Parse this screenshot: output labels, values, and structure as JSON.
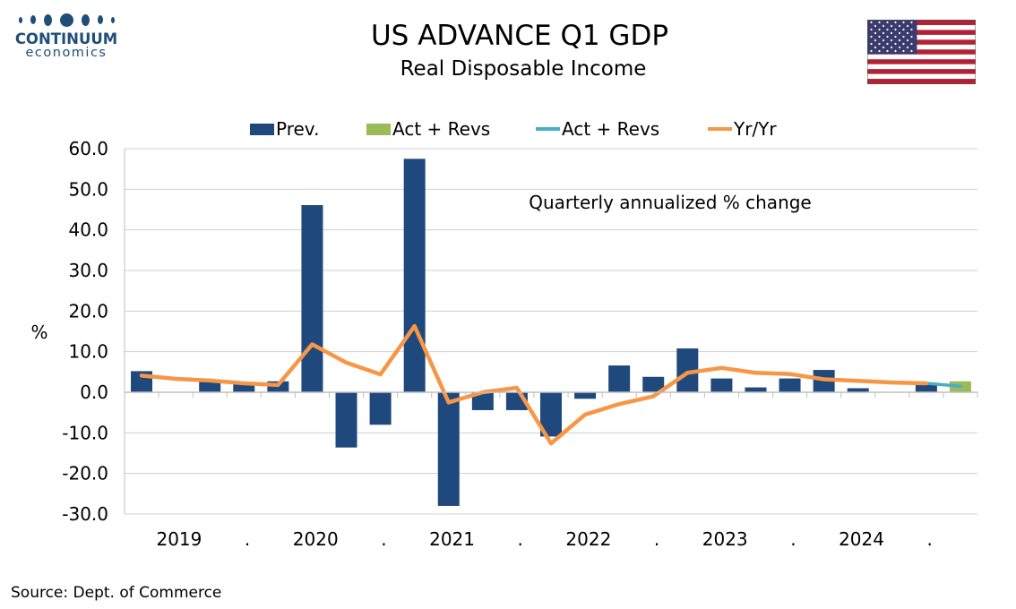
{
  "logo": {
    "name": "CONTINUUM",
    "sub": "economics"
  },
  "title": "US ADVANCE Q1 GDP",
  "subtitle": "Real Disposable Income",
  "source": "Source: Dept. of Commerce",
  "flag_icon": "us-flag-icon",
  "chart_data": {
    "type": "bar",
    "ylabel": "%",
    "annotation": "Quarterly annualized % change",
    "ylim": [
      -30,
      60
    ],
    "yticks": [
      "60.0",
      "50.0",
      "40.0",
      "30.0",
      "20.0",
      "10.0",
      "0.0",
      "-10.0",
      "-20.0",
      "-30.0"
    ],
    "x_labels": [
      "2019",
      ".",
      "2020",
      ".",
      "2021",
      ".",
      "2022",
      ".",
      "2023",
      ".",
      "2024",
      "."
    ],
    "legend_position": "top",
    "legend": [
      {
        "label": "Prev.",
        "kind": "bar",
        "color": "#1f497d"
      },
      {
        "label": "Act + Revs",
        "kind": "bar",
        "color": "#9bbb59"
      },
      {
        "label": "Act + Revs",
        "kind": "line",
        "color": "#4bacc6"
      },
      {
        "label": "Yr/Yr",
        "kind": "line",
        "color": "#f79646"
      }
    ],
    "series": [
      {
        "name": "Prev.",
        "kind": "bar",
        "color": "#1f497d",
        "values": [
          5.2,
          null,
          3.0,
          2.0,
          2.7,
          46.1,
          -13.6,
          -8.0,
          57.5,
          -28.0,
          -4.4,
          -4.4,
          -10.9,
          -1.6,
          6.6,
          3.8,
          10.8,
          3.4,
          1.2,
          3.4,
          5.5,
          1.0,
          null,
          1.9,
          null
        ]
      },
      {
        "name": "Act + Revs",
        "kind": "bar",
        "color": "#9bbb59",
        "values": [
          null,
          null,
          null,
          null,
          null,
          null,
          null,
          null,
          null,
          null,
          null,
          null,
          null,
          null,
          null,
          null,
          null,
          null,
          null,
          null,
          null,
          null,
          null,
          null,
          2.7
        ]
      },
      {
        "name": "Act + Revs",
        "kind": "line",
        "color": "#4bacc6",
        "values": [
          null,
          null,
          null,
          null,
          null,
          null,
          null,
          null,
          null,
          null,
          null,
          null,
          null,
          null,
          null,
          null,
          null,
          null,
          null,
          null,
          null,
          null,
          null,
          2.2,
          1.5
        ]
      },
      {
        "name": "Yr/Yr",
        "kind": "line",
        "color": "#f79646",
        "values": [
          4.1,
          3.3,
          2.9,
          2.2,
          1.8,
          11.8,
          7.3,
          4.4,
          16.3,
          -2.5,
          0.0,
          1.1,
          -12.6,
          -5.5,
          -2.9,
          -1.0,
          4.8,
          6.0,
          4.8,
          4.5,
          3.2,
          2.8,
          2.4,
          2.2,
          null
        ]
      }
    ]
  }
}
